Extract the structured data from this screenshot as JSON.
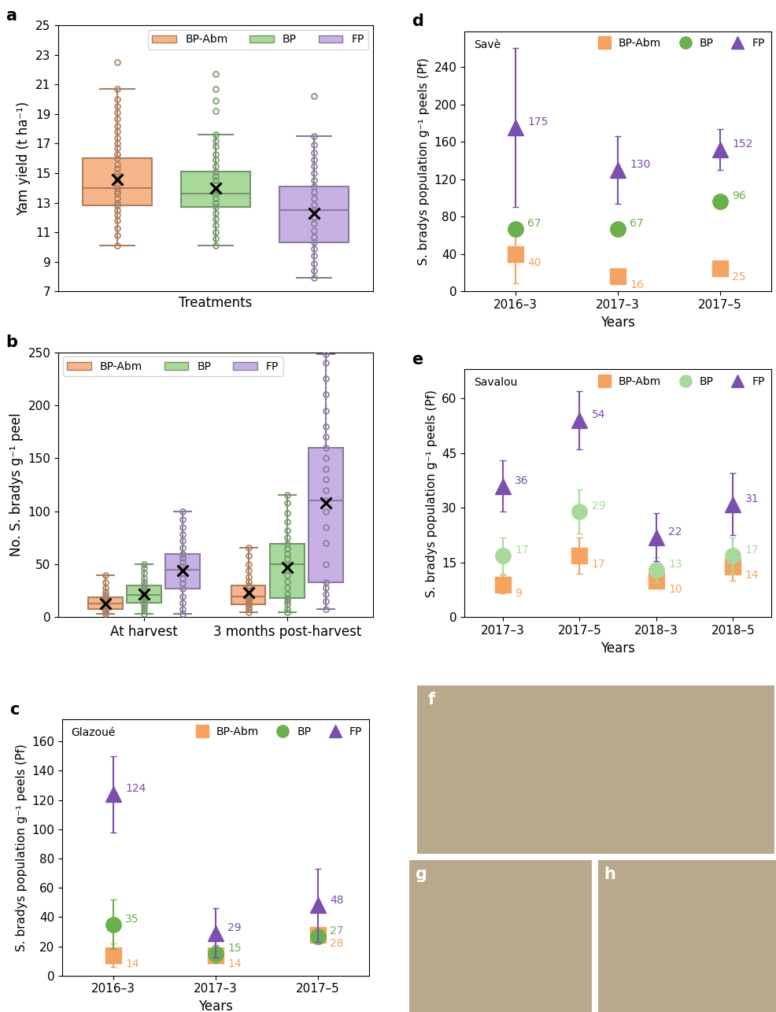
{
  "chart_data": [
    {
      "type": "box",
      "title": "a",
      "x_label": "Treatments",
      "y_label": "Yam yield (t ha⁻¹)",
      "ylim": [
        7,
        25
      ],
      "yticks": [
        7,
        9,
        11,
        13,
        15,
        17,
        19,
        21,
        23,
        25
      ],
      "tick_labels": "y",
      "legend": "upper right",
      "series": [
        {
          "name": "BP-Abm",
          "color": "#f7b58a",
          "boxes": [
            {
              "whislo": 10.1,
              "q1": 12.8,
              "med": 14.0,
              "q3": 16.0,
              "whishi": 20.7,
              "mean": 14.6,
              "points": [
                10.1,
                10.8,
                11.3,
                11.8,
                12.2,
                12.5,
                12.8,
                13.0,
                13.3,
                13.6,
                13.8,
                14.0,
                14.2,
                14.5,
                14.8,
                15.0,
                15.3,
                15.6,
                16.0,
                16.3,
                16.7,
                17.0,
                17.4,
                17.8,
                18.2,
                18.7,
                19.1,
                19.5,
                20.0,
                20.7,
                22.5
              ]
            }
          ]
        },
        {
          "name": "BP",
          "color": "#a8d89a",
          "boxes": [
            {
              "whislo": 10.1,
              "q1": 12.7,
              "med": 13.6,
              "q3": 15.1,
              "whishi": 17.6,
              "mean": 14.0,
              "points": [
                10.1,
                10.6,
                11.0,
                11.5,
                11.9,
                12.3,
                12.7,
                13.0,
                13.3,
                13.6,
                13.9,
                14.2,
                14.5,
                14.8,
                15.1,
                15.5,
                15.9,
                16.3,
                16.8,
                17.2,
                17.6,
                19.2,
                19.9,
                20.7,
                21.7
              ]
            }
          ]
        },
        {
          "name": "FP",
          "color": "#c7b0e3",
          "boxes": [
            {
              "whislo": 7.9,
              "q1": 10.3,
              "med": 12.5,
              "q3": 14.1,
              "whishi": 17.5,
              "mean": 12.3,
              "points": [
                7.9,
                8.4,
                8.9,
                9.4,
                9.9,
                10.3,
                10.7,
                11.1,
                11.6,
                12.0,
                12.5,
                12.9,
                13.3,
                13.7,
                14.1,
                14.5,
                15.0,
                15.5,
                15.9,
                16.4,
                16.9,
                17.5,
                20.2
              ]
            }
          ]
        }
      ]
    },
    {
      "type": "box",
      "title": "b",
      "y_label": "No. S. bradys g⁻¹ peel",
      "categories": [
        "At harvest",
        "3 months post-harvest"
      ],
      "ylim": [
        0,
        250
      ],
      "yticks": [
        0,
        50,
        100,
        150,
        200,
        250
      ],
      "legend": "upper left",
      "series": [
        {
          "name": "BP-Abm",
          "color": "#f7b58a",
          "boxes": [
            {
              "whislo": 3,
              "q1": 8,
              "med": 13,
              "q3": 19,
              "whishi": 40,
              "mean": 13,
              "points": [
                3,
                5,
                6,
                7,
                8,
                9,
                10,
                11,
                12,
                13,
                14,
                15,
                16,
                17,
                19,
                21,
                24,
                28,
                33,
                40
              ]
            },
            {
              "whislo": 5,
              "q1": 12,
              "med": 20,
              "q3": 30,
              "whishi": 66,
              "mean": 23,
              "points": [
                5,
                8,
                10,
                12,
                14,
                16,
                18,
                20,
                22,
                25,
                28,
                30,
                34,
                38,
                44,
                50,
                58,
                66
              ]
            }
          ]
        },
        {
          "name": "BP",
          "color": "#a8d89a",
          "boxes": [
            {
              "whislo": 3,
              "q1": 14,
              "med": 21,
              "q3": 30,
              "whishi": 50,
              "mean": 22,
              "points": [
                3,
                6,
                9,
                12,
                14,
                16,
                18,
                20,
                21,
                23,
                25,
                27,
                30,
                33,
                37,
                42,
                46,
                50
              ]
            },
            {
              "whislo": 5,
              "q1": 18,
              "med": 50,
              "q3": 69,
              "whishi": 115,
              "mean": 47,
              "points": [
                5,
                8,
                12,
                15,
                18,
                22,
                28,
                34,
                40,
                45,
                50,
                55,
                60,
                65,
                69,
                75,
                82,
                90,
                98,
                108,
                115
              ]
            }
          ]
        },
        {
          "name": "FP",
          "color": "#c7b0e3",
          "boxes": [
            {
              "whislo": 3,
              "q1": 27,
              "med": 45,
              "q3": 60,
              "whishi": 100,
              "mean": 44,
              "points": [
                3,
                8,
                14,
                20,
                27,
                32,
                37,
                42,
                45,
                48,
                52,
                56,
                60,
                66,
                72,
                78,
                85,
                92,
                100
              ]
            },
            {
              "whislo": 8,
              "q1": 33,
              "med": 110,
              "q3": 160,
              "whishi": 248,
              "mean": 108,
              "points": [
                8,
                15,
                22,
                28,
                33,
                50,
                70,
                85,
                100,
                110,
                120,
                130,
                140,
                150,
                160,
                170,
                180,
                195,
                210,
                225,
                240,
                248
              ]
            }
          ]
        }
      ]
    },
    {
      "type": "point",
      "title": "c",
      "annotation": "Glazoué",
      "x_label": "Years",
      "y_label": "S. bradys population g⁻¹ peels (Pf)",
      "categories": [
        "2016–3",
        "2017–3",
        "2017–5"
      ],
      "ylim": [
        0,
        175
      ],
      "yticks": [
        0,
        20,
        40,
        60,
        80,
        100,
        120,
        140,
        160
      ],
      "legend": "upper right",
      "data_labels": true,
      "series": [
        {
          "name": "BP-Abm",
          "color": "#f4a460",
          "marker": "square",
          "values": [
            14,
            14,
            28
          ],
          "errors": [
            8,
            4,
            3
          ]
        },
        {
          "name": "BP",
          "color": "#6ab04c",
          "marker": "circle",
          "values": [
            35,
            15,
            27
          ],
          "errors": [
            17,
            6,
            3
          ]
        },
        {
          "name": "FP",
          "color": "#7a4fb0",
          "marker": "triangle",
          "values": [
            124,
            29,
            48
          ],
          "errors": [
            26,
            17,
            25
          ]
        }
      ]
    },
    {
      "type": "point",
      "title": "d",
      "annotation": "Savè",
      "x_label": "Years",
      "y_label": "S. bradys population g⁻¹ peels (Pf)",
      "categories": [
        "2016–3",
        "2017–3",
        "2017–5"
      ],
      "ylim": [
        0,
        278
      ],
      "yticks": [
        0,
        40,
        80,
        120,
        160,
        200,
        240
      ],
      "legend": "upper right",
      "data_labels": true,
      "series": [
        {
          "name": "BP-Abm",
          "color": "#f4a460",
          "marker": "square",
          "values": [
            40,
            16,
            25
          ],
          "errors": [
            31,
            6,
            5
          ]
        },
        {
          "name": "BP",
          "color": "#6ab04c",
          "marker": "circle",
          "values": [
            67,
            67,
            96
          ],
          "errors": [
            5,
            5,
            5
          ]
        },
        {
          "name": "FP",
          "color": "#7a4fb0",
          "marker": "triangle",
          "values": [
            175,
            130,
            152
          ],
          "errors": [
            85,
            36,
            22
          ]
        }
      ]
    },
    {
      "type": "point",
      "title": "e",
      "annotation": "Savalou",
      "x_label": "Years",
      "y_label": "S. bradys population g⁻¹ peels (Pf)",
      "categories": [
        "2017–3",
        "2017–5",
        "2018–3",
        "2018–5"
      ],
      "ylim": [
        0,
        68
      ],
      "yticks": [
        0,
        15,
        30,
        45,
        60
      ],
      "legend": "upper right",
      "data_labels": true,
      "series": [
        {
          "name": "BP-Abm",
          "color": "#f4a460",
          "marker": "square",
          "values": [
            9,
            17,
            10,
            14
          ],
          "errors": [
            2.5,
            5,
            1.5,
            4
          ]
        },
        {
          "name": "BP",
          "color": "#a8d89a",
          "marker": "circle",
          "values": [
            17,
            29,
            13,
            17
          ],
          "errors": [
            5,
            6,
            3.5,
            5
          ]
        },
        {
          "name": "FP",
          "color": "#7a4fb0",
          "marker": "triangle",
          "values": [
            36,
            54,
            22,
            31
          ],
          "errors": [
            7,
            8,
            6.5,
            8.5
          ]
        }
      ]
    },
    {
      "type": "image",
      "title": "f"
    },
    {
      "type": "image",
      "title": "g"
    },
    {
      "type": "image",
      "title": "h"
    }
  ]
}
